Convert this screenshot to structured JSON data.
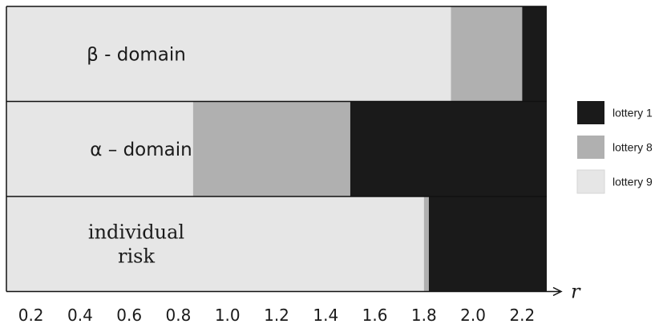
{
  "chart_data": {
    "type": "bar",
    "orientation": "horizontal-stacked",
    "x_axis_label": "r",
    "xlim": [
      0.1,
      2.3
    ],
    "ticks": [
      "0.2",
      "0.4",
      "0.6",
      "0.8",
      "1.0",
      "1.2",
      "1.4",
      "1.6",
      "1.8",
      "2.0",
      "2.2"
    ],
    "rows": [
      {
        "label_lines": [
          "β - domain"
        ],
        "segments": [
          {
            "series": "lottery 9",
            "from": 0.1,
            "to": 1.91
          },
          {
            "series": "lottery 8",
            "from": 1.91,
            "to": 2.2
          },
          {
            "series": "lottery 1",
            "from": 2.2,
            "to": 2.3
          }
        ]
      },
      {
        "label_lines": [
          "α – domain"
        ],
        "segments": [
          {
            "series": "lottery 9",
            "from": 0.1,
            "to": 0.86
          },
          {
            "series": "lottery 8",
            "from": 0.86,
            "to": 1.5
          },
          {
            "series": "lottery 1",
            "from": 1.5,
            "to": 2.3
          }
        ]
      },
      {
        "label_lines": [
          "individual",
          "risk"
        ],
        "segments": [
          {
            "series": "lottery 9",
            "from": 0.1,
            "to": 1.8
          },
          {
            "series": "lottery 8",
            "from": 1.8,
            "to": 1.82
          },
          {
            "series": "lottery 1",
            "from": 1.82,
            "to": 2.3
          }
        ]
      }
    ],
    "legend": [
      {
        "name": "lottery 1",
        "color": "#1a1a1a"
      },
      {
        "name": "lottery 8",
        "color": "#b0b0b0"
      },
      {
        "name": "lottery 9",
        "color": "#e6e6e6"
      }
    ],
    "legend_position": "right"
  }
}
